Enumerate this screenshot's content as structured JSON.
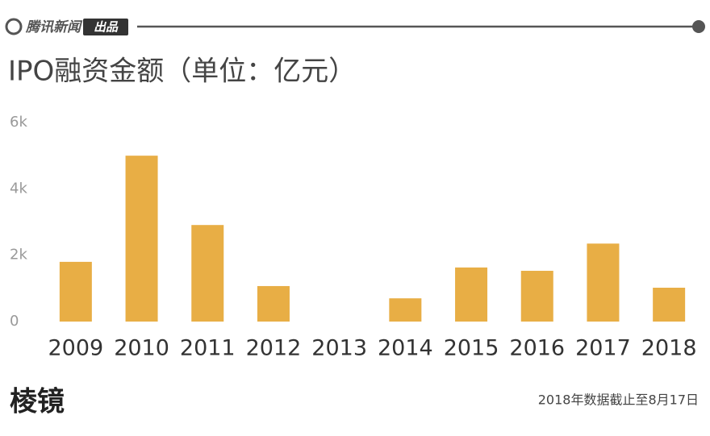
{
  "header": {
    "brand": "腾讯新闻",
    "badge": "出品"
  },
  "chart_data": {
    "type": "bar",
    "title": "IPO融资金额（单位：亿元）",
    "categories": [
      "2009",
      "2010",
      "2011",
      "2012",
      "2013",
      "2014",
      "2015",
      "2016",
      "2017",
      "2018"
    ],
    "values": [
      1800,
      5000,
      2910,
      1070,
      0,
      700,
      1630,
      1530,
      2350,
      1020
    ],
    "color": "#e8ae45",
    "ylim": [
      0,
      6000
    ],
    "yticks": [
      0,
      {
        "value": 2000,
        "label": "2k"
      },
      {
        "value": 4000,
        "label": "4k"
      },
      {
        "value": 6000,
        "label": "6k"
      }
    ],
    "grid": false
  },
  "footer": {
    "logo": "棱镜",
    "note": "2018年数据截止至8月17日"
  }
}
